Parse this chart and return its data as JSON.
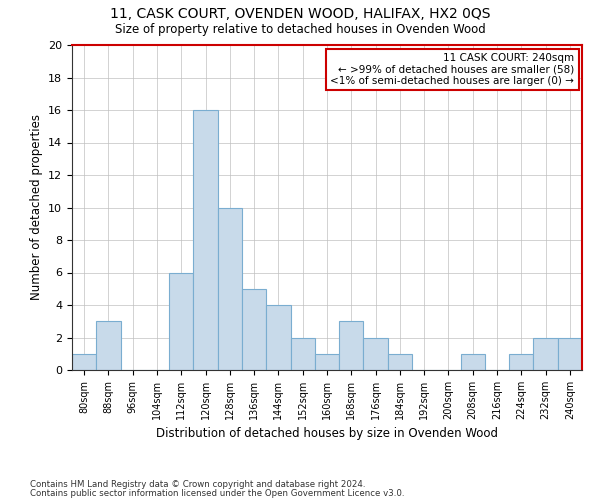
{
  "title1": "11, CASK COURT, OVENDEN WOOD, HALIFAX, HX2 0QS",
  "title2": "Size of property relative to detached houses in Ovenden Wood",
  "xlabel": "Distribution of detached houses by size in Ovenden Wood",
  "ylabel": "Number of detached properties",
  "bar_color": "#c8daea",
  "bar_edge_color": "#7aadd0",
  "categories": [
    "80sqm",
    "88sqm",
    "96sqm",
    "104sqm",
    "112sqm",
    "120sqm",
    "128sqm",
    "136sqm",
    "144sqm",
    "152sqm",
    "160sqm",
    "168sqm",
    "176sqm",
    "184sqm",
    "192sqm",
    "200sqm",
    "208sqm",
    "216sqm",
    "224sqm",
    "232sqm",
    "240sqm"
  ],
  "values": [
    1,
    3,
    0,
    0,
    6,
    16,
    10,
    5,
    4,
    2,
    1,
    3,
    2,
    1,
    0,
    0,
    1,
    0,
    1,
    2,
    2
  ],
  "ylim": [
    0,
    20
  ],
  "yticks": [
    0,
    2,
    4,
    6,
    8,
    10,
    12,
    14,
    16,
    18,
    20
  ],
  "annotation_title": "11 CASK COURT: 240sqm",
  "annotation_line2": "← >99% of detached houses are smaller (58)",
  "annotation_line3": "<1% of semi-detached houses are larger (0) →",
  "annotation_box_facecolor": "#ffffff",
  "annotation_box_edgecolor": "#cc0000",
  "footer1": "Contains HM Land Registry data © Crown copyright and database right 2024.",
  "footer2": "Contains public sector information licensed under the Open Government Licence v3.0.",
  "spine_right_color": "#cc0000",
  "spine_top_color": "#cc0000"
}
